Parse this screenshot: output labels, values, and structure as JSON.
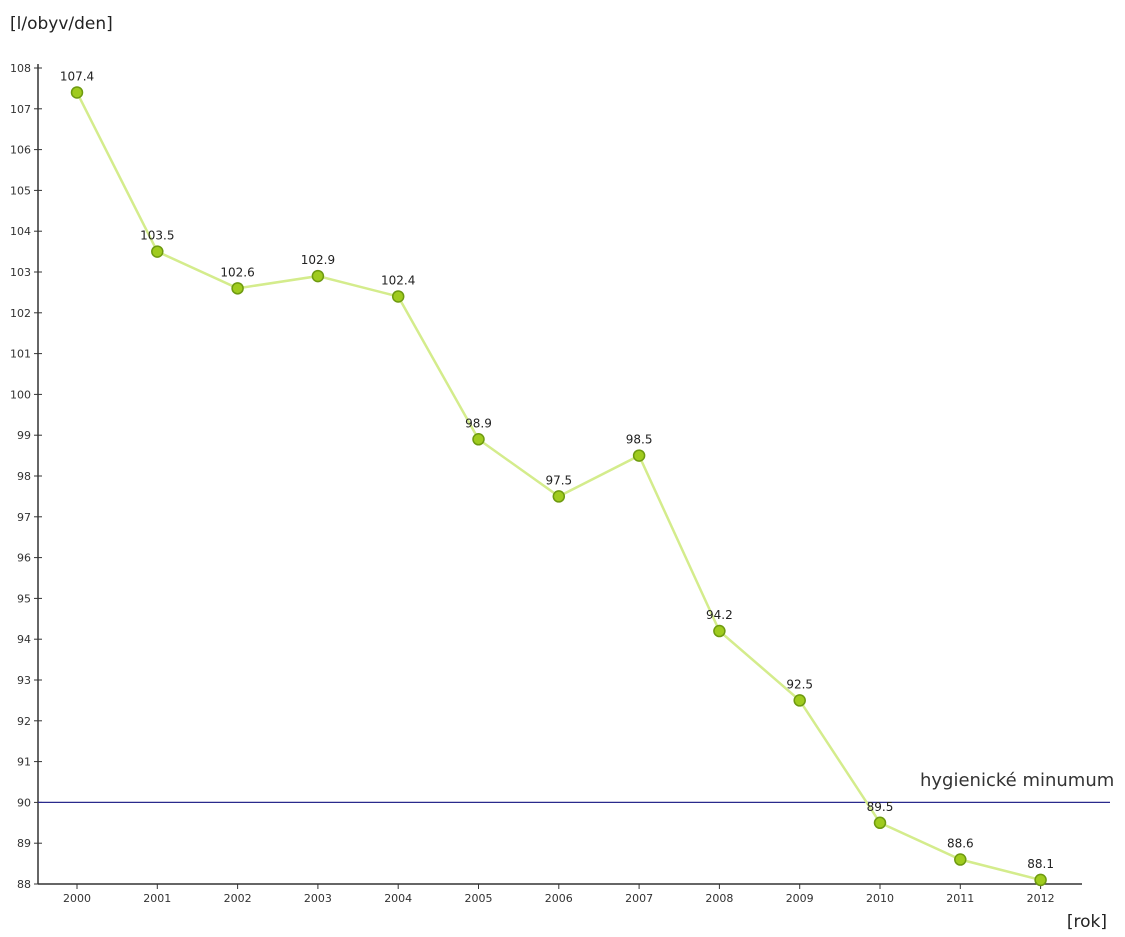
{
  "chart_data": {
    "type": "line",
    "xlabel": "[rok]",
    "ylabel": "[l/obyv/den]",
    "categories": [
      "2000",
      "2001",
      "2002",
      "2003",
      "2004",
      "2005",
      "2006",
      "2007",
      "2008",
      "2009",
      "2010",
      "2011",
      "2012"
    ],
    "series": [
      {
        "values": [
          107.4,
          103.5,
          102.6,
          102.9,
          102.4,
          98.9,
          97.5,
          98.5,
          94.2,
          92.5,
          89.5,
          88.6,
          88.1
        ]
      }
    ],
    "data_labels": [
      "107.4",
      "103.5",
      "102.6",
      "102.9",
      "102.4",
      "98.9",
      "97.5",
      "98.5",
      "94.2",
      "92.5",
      "89.5",
      "88.6",
      "88.1"
    ],
    "ylim": [
      88,
      108
    ],
    "yticks": [
      88,
      89,
      90,
      91,
      92,
      93,
      94,
      95,
      96,
      97,
      98,
      99,
      100,
      101,
      102,
      103,
      104,
      105,
      106,
      107,
      108
    ],
    "reference_line": {
      "value": 90,
      "label": "hygienické minumum"
    },
    "grid": false,
    "legend": "none"
  },
  "colors": {
    "line": "#d4ec8c",
    "marker_fill": "#9fcb1e",
    "marker_stroke": "#6e9a10",
    "reference_line": "#2a2a8c",
    "axis": "#333333"
  }
}
